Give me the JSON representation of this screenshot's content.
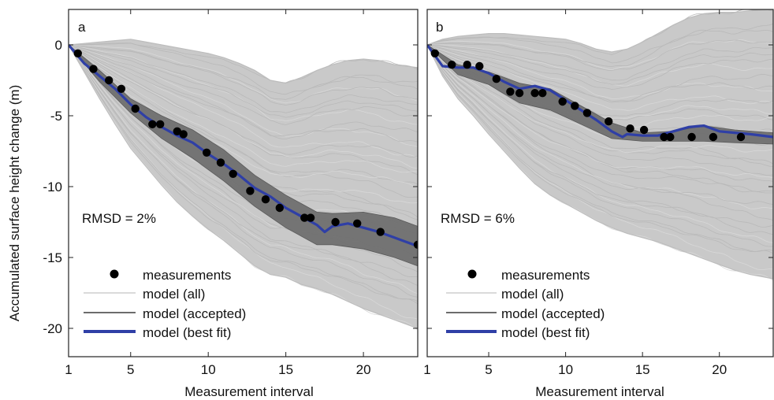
{
  "figure": {
    "ylabel": "Accumulated surface height change (m)",
    "xlabel": "Measurement interval",
    "legend": {
      "measurements": "measurements",
      "all": "model (all)",
      "accepted": "model (accepted)",
      "best": "model (best fit)"
    },
    "colors": {
      "all": "#c4c4c4",
      "accepted": "#6c6c6c",
      "best": "#2f3fa6",
      "measurements": "#000000",
      "frame": "#222222"
    }
  },
  "chart_data": [
    {
      "type": "line",
      "panel_label": "a",
      "annotation": "RMSD = 2%",
      "legend_position": "bottom-left",
      "xlim": [
        1,
        23.5
      ],
      "ylim": [
        -22,
        2.5
      ],
      "xticks": [
        1,
        5,
        10,
        15,
        20
      ],
      "xtick_labels": [
        "1",
        "5",
        "10",
        "15",
        "20"
      ],
      "yticks": [
        0,
        -5,
        -10,
        -15,
        -20
      ],
      "ytick_labels": [
        "0",
        "-5",
        "-10",
        "-15",
        "-20"
      ],
      "measurements": {
        "x": [
          1.6,
          2.6,
          3.6,
          4.4,
          5.3,
          6.4,
          6.9,
          8.0,
          8.4,
          9.9,
          10.8,
          11.6,
          12.7,
          13.7,
          14.6,
          16.2,
          16.6,
          18.2,
          19.6,
          21.1,
          23.5
        ],
        "y": [
          -0.6,
          -1.7,
          -2.5,
          -3.1,
          -4.5,
          -5.6,
          -5.6,
          -6.1,
          -6.3,
          -7.6,
          -8.3,
          -9.1,
          -10.3,
          -10.9,
          -11.5,
          -12.2,
          -12.2,
          -12.5,
          -12.6,
          -13.2,
          -14.1
        ]
      },
      "best_fit": {
        "x": [
          1,
          2,
          3,
          4,
          5,
          6,
          7,
          8,
          9,
          10,
          11,
          12,
          13,
          14,
          15,
          16,
          17,
          17.5,
          18,
          19,
          20,
          21,
          22,
          23.5
        ],
        "y": [
          0,
          -1.3,
          -2.2,
          -3.1,
          -4.2,
          -5.1,
          -5.8,
          -6.4,
          -6.9,
          -7.7,
          -8.4,
          -9.2,
          -10.1,
          -10.7,
          -11.5,
          -12.1,
          -12.7,
          -13.2,
          -12.8,
          -12.6,
          -12.9,
          -13.2,
          -13.6,
          -14.2
        ]
      },
      "accepted_band": {
        "x": [
          1,
          3,
          5,
          7,
          9,
          11,
          13,
          15,
          17,
          18,
          20,
          22,
          23.5
        ],
        "upper": [
          0,
          -1.8,
          -3.8,
          -5.0,
          -6.0,
          -7.4,
          -9.2,
          -10.6,
          -11.8,
          -11.9,
          -11.8,
          -12.2,
          -12.8
        ],
        "lower": [
          0,
          -2.6,
          -4.8,
          -6.6,
          -8.0,
          -9.6,
          -11.4,
          -12.9,
          -14.1,
          -14.1,
          -14.4,
          -15.0,
          -15.6
        ]
      },
      "all_band": {
        "x": [
          1,
          2,
          3,
          4,
          5,
          6,
          7,
          8,
          9,
          10,
          11,
          12,
          13,
          14,
          15,
          16,
          17,
          18,
          19,
          20,
          21,
          22,
          23.5
        ],
        "upper": [
          0,
          0.1,
          0.2,
          0.3,
          0.4,
          0.2,
          0.0,
          -0.2,
          -0.4,
          -0.6,
          -0.9,
          -1.3,
          -1.8,
          -2.5,
          -2.7,
          -2.3,
          -1.8,
          -1.4,
          -1.1,
          -1.0,
          -1.1,
          -1.4,
          -1.6
        ],
        "lower": [
          0,
          -1.9,
          -3.8,
          -5.6,
          -7.3,
          -8.6,
          -9.9,
          -11.1,
          -12.1,
          -13.0,
          -13.8,
          -14.7,
          -15.6,
          -16.2,
          -16.4,
          -16.9,
          -17.2,
          -17.6,
          -18.1,
          -18.6,
          -19.0,
          -19.4,
          -20.0
        ]
      },
      "all_top_trace": {
        "x": [
          1,
          2,
          3,
          4,
          5,
          6,
          7,
          8,
          9,
          10,
          11,
          12,
          13,
          14,
          15,
          16,
          17,
          18,
          19,
          20,
          21,
          22,
          23.5
        ],
        "y": [
          0,
          0.1,
          0.2,
          0.3,
          0.4,
          0.2,
          0.0,
          -0.2,
          -0.4,
          -0.6,
          -0.9,
          -1.3,
          -1.8,
          -2.5,
          -2.7,
          -2.3,
          -1.8,
          -1.4,
          -1.1,
          -1.0,
          -1.1,
          -1.4,
          -1.6
        ]
      },
      "all_bottom_trace": {
        "x": [
          1,
          2,
          3,
          4,
          5,
          6,
          7,
          8,
          9,
          10,
          11,
          12,
          13,
          14,
          15,
          16,
          17,
          18,
          19,
          20,
          21,
          22,
          23.5
        ],
        "y": [
          0,
          -1.9,
          -3.8,
          -5.6,
          -7.3,
          -8.6,
          -9.9,
          -11.1,
          -12.1,
          -13.0,
          -13.8,
          -14.7,
          -15.6,
          -16.2,
          -16.4,
          -16.9,
          -17.2,
          -17.6,
          -18.1,
          -18.6,
          -19.0,
          -19.4,
          -20.0
        ]
      }
    },
    {
      "type": "line",
      "panel_label": "b",
      "annotation": "RMSD = 6%",
      "legend_position": "bottom-left",
      "xlim": [
        1,
        23.5
      ],
      "ylim": [
        -22,
        2.5
      ],
      "xticks": [
        1,
        5,
        10,
        15,
        20
      ],
      "xtick_labels": [
        "1",
        "5",
        "10",
        "15",
        "20"
      ],
      "yticks": [
        0,
        -5,
        -10,
        -15,
        -20
      ],
      "ytick_labels": [
        "",
        "",
        "",
        "",
        ""
      ],
      "measurements": {
        "x": [
          1.5,
          2.6,
          3.6,
          4.4,
          5.5,
          6.4,
          7.0,
          8.0,
          8.5,
          9.8,
          10.6,
          11.4,
          12.8,
          14.2,
          15.1,
          16.4,
          16.8,
          18.2,
          19.6,
          21.4
        ],
        "y": [
          -0.6,
          -1.4,
          -1.4,
          -1.5,
          -2.4,
          -3.3,
          -3.4,
          -3.4,
          -3.4,
          -4.0,
          -4.3,
          -4.8,
          -5.4,
          -5.9,
          -6.0,
          -6.5,
          -6.5,
          -6.5,
          -6.5,
          -6.5
        ]
      },
      "best_fit": {
        "x": [
          1,
          2,
          3,
          4,
          5,
          6,
          7,
          8,
          9,
          10,
          11,
          12,
          13,
          13.7,
          14,
          15,
          16,
          17,
          18,
          19,
          20,
          21,
          22,
          23.5
        ],
        "y": [
          0,
          -1.5,
          -1.6,
          -1.6,
          -2.0,
          -2.6,
          -3.1,
          -2.9,
          -3.2,
          -3.9,
          -4.6,
          -5.3,
          -6.1,
          -6.5,
          -6.3,
          -6.4,
          -6.4,
          -6.1,
          -5.8,
          -5.7,
          -6.1,
          -6.2,
          -6.3,
          -6.5
        ]
      },
      "accepted_band": {
        "x": [
          1,
          3,
          5,
          7,
          9,
          11,
          13,
          15,
          17,
          19,
          21,
          23.5
        ],
        "upper": [
          0,
          -1.4,
          -1.9,
          -2.7,
          -3.1,
          -4.3,
          -5.5,
          -6.2,
          -6.1,
          -5.7,
          -6.0,
          -6.2
        ],
        "lower": [
          0,
          -2.1,
          -2.8,
          -4.1,
          -4.6,
          -5.6,
          -6.6,
          -6.8,
          -6.8,
          -6.8,
          -6.9,
          -7.0
        ]
      },
      "all_band": {
        "x": [
          1,
          2,
          3,
          4,
          5,
          6,
          7,
          8,
          9,
          10,
          11,
          12,
          13,
          14,
          15,
          16,
          17,
          18,
          19,
          20,
          21,
          22,
          23.5
        ],
        "upper": [
          0,
          0.4,
          0.6,
          0.7,
          0.8,
          0.8,
          0.7,
          0.6,
          0.5,
          0.4,
          0.1,
          -0.3,
          -0.5,
          -0.3,
          0.2,
          0.8,
          1.4,
          1.9,
          2.2,
          2.3,
          2.3,
          2.4,
          2.5
        ],
        "lower": [
          0,
          -2.2,
          -3.8,
          -5.0,
          -6.3,
          -7.5,
          -8.7,
          -9.8,
          -10.6,
          -11.2,
          -11.8,
          -12.4,
          -12.9,
          -13.3,
          -13.6,
          -13.9,
          -14.3,
          -14.7,
          -15.1,
          -15.5,
          -15.9,
          -16.2,
          -16.5
        ]
      },
      "all_top_trace": {
        "x": [
          1,
          2,
          3,
          4,
          5,
          6,
          7,
          8,
          9,
          10,
          11,
          12,
          13,
          14,
          15,
          16,
          17,
          18,
          19,
          20,
          21,
          22,
          23.5
        ],
        "y": [
          0,
          0.4,
          0.6,
          0.7,
          0.8,
          0.8,
          0.7,
          0.6,
          0.5,
          0.4,
          0.1,
          -0.3,
          -0.5,
          -0.3,
          0.2,
          0.8,
          1.4,
          1.9,
          2.2,
          2.3,
          2.3,
          2.4,
          2.5
        ]
      },
      "all_bottom_trace": {
        "x": [
          1,
          2,
          3,
          4,
          5,
          6,
          7,
          8,
          9,
          10,
          11,
          12,
          13,
          14,
          15,
          16,
          17,
          18,
          19,
          20,
          21,
          22,
          23.5
        ],
        "y": [
          0,
          -2.2,
          -3.8,
          -5.0,
          -6.3,
          -7.5,
          -8.7,
          -9.8,
          -10.6,
          -11.2,
          -11.8,
          -12.4,
          -12.9,
          -13.3,
          -13.6,
          -13.9,
          -14.3,
          -14.7,
          -15.1,
          -15.5,
          -15.9,
          -16.2,
          -16.5
        ]
      }
    }
  ]
}
